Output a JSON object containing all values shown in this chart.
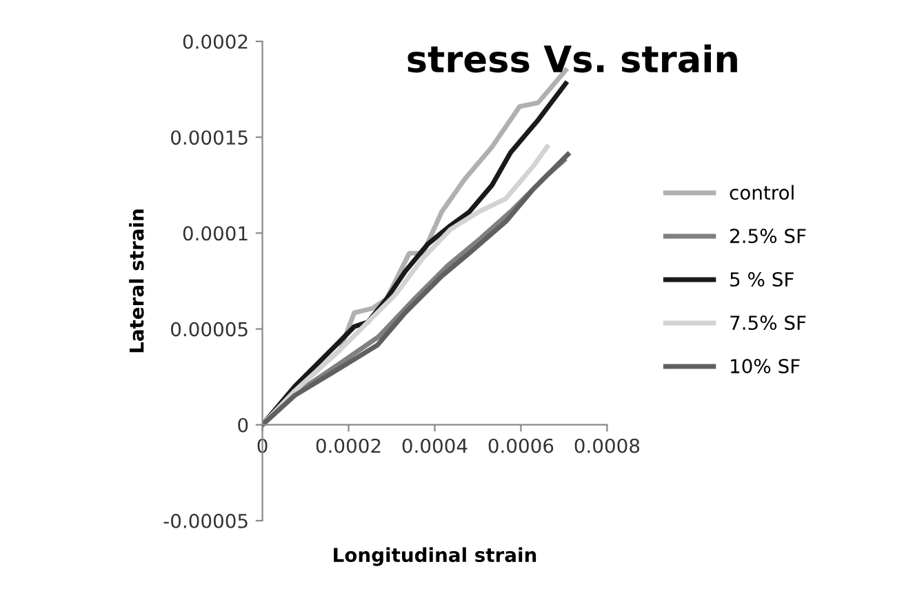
{
  "chart_data": {
    "type": "line",
    "title": "stress Vs. strain",
    "xlabel": "Longitudinal strain",
    "ylabel": "Lateral strain",
    "xlim": [
      0,
      0.0008
    ],
    "ylim": [
      -5e-05,
      0.0002
    ],
    "xticks": [
      {
        "value": 0,
        "label": "0"
      },
      {
        "value": 0.0002,
        "label": "0.0002"
      },
      {
        "value": 0.0004,
        "label": "0.0004"
      },
      {
        "value": 0.0006,
        "label": "0.0006"
      },
      {
        "value": 0.0008,
        "label": "0.0008"
      }
    ],
    "yticks": [
      {
        "value": -5e-05,
        "label": "-0.00005"
      },
      {
        "value": 0,
        "label": "0"
      },
      {
        "value": 5e-05,
        "label": "0.00005"
      },
      {
        "value": 0.0001,
        "label": "0.0001"
      },
      {
        "value": 0.00015,
        "label": "0.00015"
      },
      {
        "value": 0.0002,
        "label": "0.0002"
      }
    ],
    "grid": false,
    "legend": "right",
    "marker": "none",
    "line_style": "solid",
    "series": [
      {
        "name": "control",
        "color": "#b0b0b0",
        "x": [
          0,
          7.5e-05,
          0.000181,
          0.000213,
          0.000256,
          0.000288,
          0.000341,
          0.000373,
          0.000416,
          0.000469,
          0.000533,
          0.000597,
          0.00064,
          0.000704
        ],
        "values": [
          0,
          1.77e-05,
          3.93e-05,
          5.84e-05,
          6.08e-05,
          6.56e-05,
          8.95e-05,
          8.95e-05,
          0.000111,
          0.000128,
          0.000145,
          0.000166,
          0.000168,
          0.000185
        ]
      },
      {
        "name": "2.5% SF",
        "color": "#808080",
        "x": [
          0,
          7.5e-05,
          0.00018,
          0.00027,
          0.00035,
          0.00043,
          0.0005,
          0.00058,
          0.00066,
          0.0007
        ],
        "values": [
          0,
          1.6e-05,
          3.2e-05,
          4.6e-05,
          6.5e-05,
          8.3e-05,
          9.6e-05,
          0.000112,
          0.00013,
          0.000138
        ]
      },
      {
        "name": "5 % SF",
        "color": "#1a1a1a",
        "x": [
          0,
          7.5e-05,
          0.000171,
          0.000213,
          0.000245,
          0.000288,
          0.000331,
          0.000384,
          0.000437,
          0.00048,
          0.000533,
          0.000576,
          0.00064,
          0.000704
        ],
        "values": [
          0,
          2e-05,
          4.16e-05,
          5.12e-05,
          5.36e-05,
          6.56e-05,
          7.99e-05,
          9.43e-05,
          0.000104,
          0.000111,
          0.000125,
          0.000142,
          0.000159,
          0.000178
        ]
      },
      {
        "name": "7.5% SF",
        "color": "#d3d3d3",
        "x": [
          0,
          7.5e-05,
          0.000181,
          0.000245,
          0.000309,
          0.000373,
          0.000437,
          0.000501,
          0.000565,
          0.000629,
          0.000661
        ],
        "values": [
          0,
          1.77e-05,
          3.93e-05,
          5.36e-05,
          6.8e-05,
          8.71e-05,
          0.000102,
          0.000111,
          0.000118,
          0.000135,
          0.000145
        ]
      },
      {
        "name": "10% SF",
        "color": "#606060",
        "x": [
          0,
          7.5e-05,
          0.000181,
          0.000267,
          0.000331,
          0.000416,
          0.00048,
          0.000565,
          0.000629,
          0.000709
        ],
        "values": [
          0,
          1.53e-05,
          2.97e-05,
          4.16e-05,
          5.84e-05,
          7.75e-05,
          8.95e-05,
          0.000106,
          0.000123,
          0.000141
        ]
      }
    ]
  }
}
